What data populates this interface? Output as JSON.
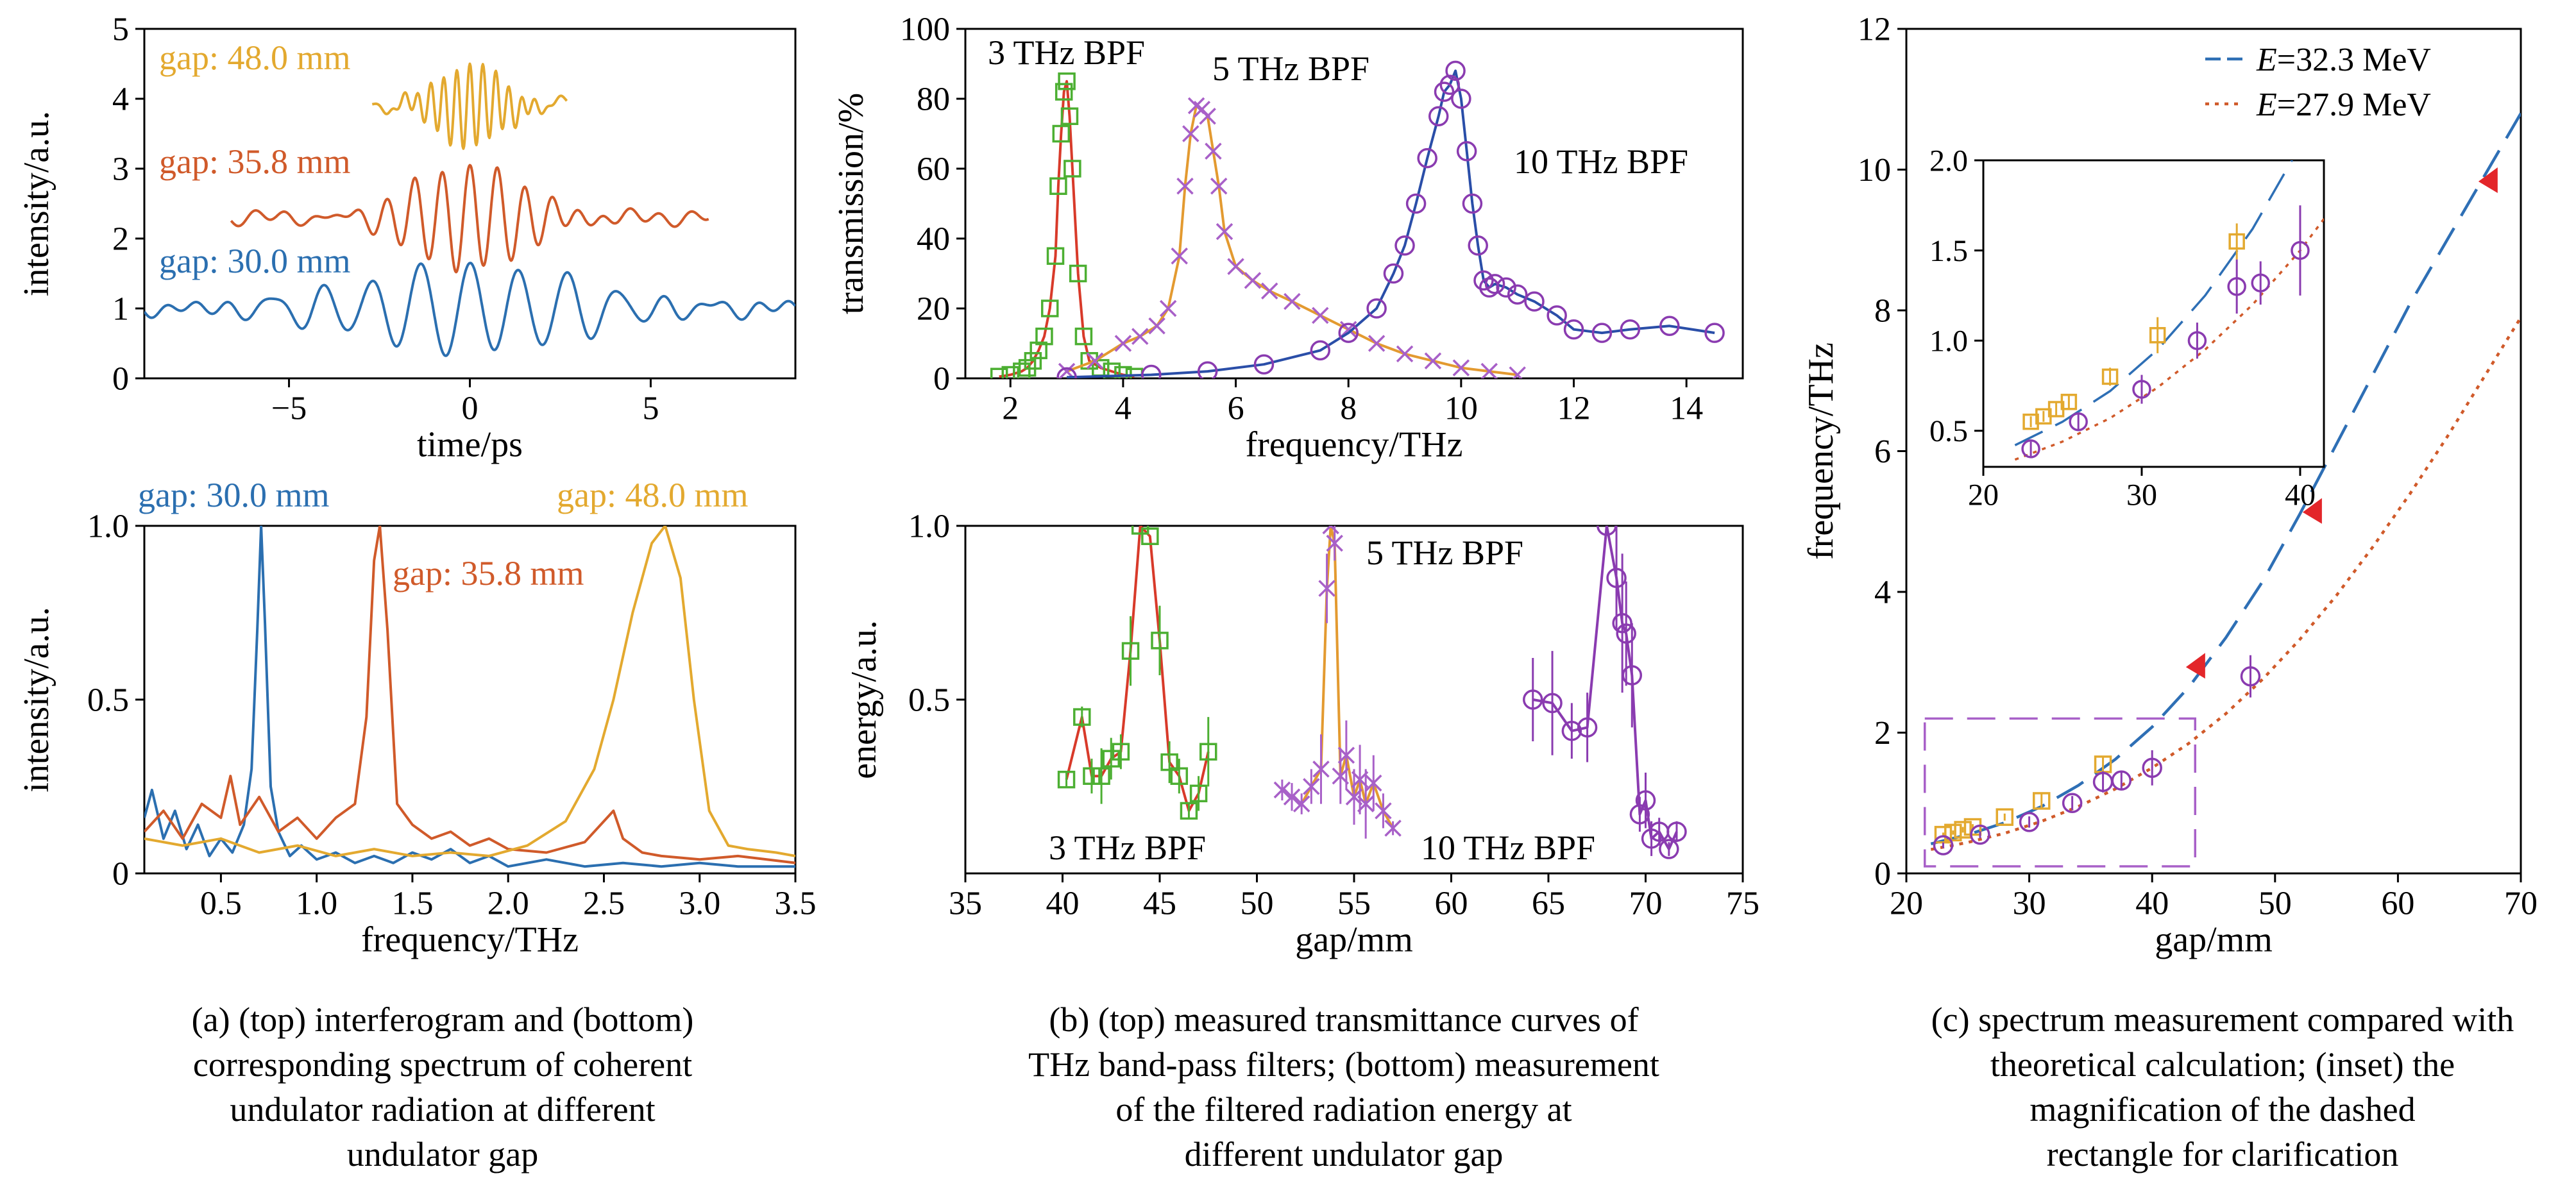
{
  "chart_data": [
    {
      "id": "a_top",
      "type": "line",
      "xlabel": "time/ps",
      "ylabel": "intensity/a.u.",
      "xlim": [
        -9,
        9
      ],
      "ylim": [
        0,
        5
      ],
      "xticks": [
        -5,
        0,
        5
      ],
      "yticks": [
        0,
        1,
        2,
        3,
        4,
        5
      ],
      "xtick_labels": [
        "−5",
        "0",
        "5"
      ],
      "ytick_labels": [
        "0",
        "1",
        "2",
        "3",
        "4",
        "5"
      ],
      "grid": false,
      "series": [
        {
          "name": "gap: 30.0 mm",
          "color": "#2b6fb0",
          "x_range": [
            -9,
            9
          ],
          "baseline": 1.0,
          "carrier_period_ps": 1.35,
          "envelope_peak": 0.65,
          "envelope_width_ps": 4.5
        },
        {
          "name": "gap: 35.8 mm",
          "color": "#d05a2a",
          "x_range": [
            -6.6,
            6.6
          ],
          "baseline": 2.3,
          "carrier_period_ps": 0.76,
          "envelope_peak": 0.75,
          "envelope_width_ps": 2.4
        },
        {
          "name": "gap: 48.0 mm",
          "color": "#e3a92f",
          "x_range": [
            -2.7,
            2.7
          ],
          "baseline": 3.9,
          "carrier_period_ps": 0.36,
          "envelope_peak": 0.6,
          "envelope_width_ps": 1.3
        }
      ]
    },
    {
      "id": "a_bottom",
      "type": "line",
      "xlabel": "frequency/THz",
      "ylabel": "intensity/a.u.",
      "xlim": [
        0.1,
        3.5
      ],
      "ylim": [
        0,
        1.0
      ],
      "xticks": [
        0.5,
        1.0,
        1.5,
        2.0,
        2.5,
        3.0,
        3.5
      ],
      "yticks": [
        0,
        0.5,
        1.0
      ],
      "xtick_labels": [
        "0.5",
        "1.0",
        "1.5",
        "2.0",
        "2.5",
        "3.0",
        "3.5"
      ],
      "ytick_labels": [
        "0",
        "0.5",
        "1.0"
      ],
      "grid": false,
      "series": [
        {
          "name": "gap: 30.0 mm",
          "color": "#2b6fb0",
          "x": [
            0.1,
            0.14,
            0.2,
            0.26,
            0.32,
            0.38,
            0.44,
            0.5,
            0.56,
            0.62,
            0.66,
            0.69,
            0.71,
            0.73,
            0.76,
            0.8,
            0.86,
            0.92,
            1.0,
            1.1,
            1.2,
            1.3,
            1.4,
            1.5,
            1.6,
            1.7,
            1.8,
            1.9,
            2.0,
            2.2,
            2.4,
            2.6,
            2.8,
            3.0,
            3.2,
            3.5
          ],
          "y": [
            0.16,
            0.24,
            0.1,
            0.18,
            0.07,
            0.14,
            0.05,
            0.1,
            0.06,
            0.14,
            0.3,
            0.7,
            1.0,
            0.72,
            0.25,
            0.12,
            0.05,
            0.08,
            0.04,
            0.06,
            0.03,
            0.05,
            0.03,
            0.06,
            0.04,
            0.07,
            0.03,
            0.05,
            0.02,
            0.04,
            0.02,
            0.03,
            0.02,
            0.03,
            0.02,
            0.02
          ]
        },
        {
          "name": "gap: 35.8 mm",
          "color": "#d05a2a",
          "x": [
            0.1,
            0.2,
            0.3,
            0.4,
            0.5,
            0.55,
            0.6,
            0.7,
            0.8,
            0.9,
            1.0,
            1.1,
            1.2,
            1.26,
            1.3,
            1.33,
            1.37,
            1.42,
            1.5,
            1.6,
            1.7,
            1.8,
            1.9,
            2.0,
            2.2,
            2.4,
            2.55,
            2.6,
            2.7,
            2.8,
            3.0,
            3.2,
            3.5
          ],
          "y": [
            0.12,
            0.18,
            0.1,
            0.2,
            0.16,
            0.28,
            0.14,
            0.22,
            0.12,
            0.16,
            0.1,
            0.16,
            0.2,
            0.45,
            0.9,
            1.0,
            0.7,
            0.2,
            0.14,
            0.1,
            0.12,
            0.08,
            0.1,
            0.07,
            0.06,
            0.09,
            0.18,
            0.1,
            0.06,
            0.05,
            0.04,
            0.05,
            0.03
          ]
        },
        {
          "name": "gap: 48.0 mm",
          "color": "#e3a92f",
          "x": [
            0.1,
            0.3,
            0.5,
            0.7,
            0.9,
            1.1,
            1.3,
            1.5,
            1.7,
            1.9,
            2.1,
            2.3,
            2.45,
            2.55,
            2.65,
            2.75,
            2.82,
            2.9,
            2.97,
            3.05,
            3.15,
            3.25,
            3.4,
            3.5
          ],
          "y": [
            0.1,
            0.08,
            0.1,
            0.06,
            0.08,
            0.05,
            0.07,
            0.05,
            0.06,
            0.05,
            0.08,
            0.15,
            0.3,
            0.5,
            0.75,
            0.95,
            1.0,
            0.85,
            0.5,
            0.18,
            0.08,
            0.07,
            0.06,
            0.05
          ]
        }
      ]
    },
    {
      "id": "b_top",
      "type": "line",
      "xlabel": "frequency/THz",
      "ylabel": "transmission/%",
      "xlim": [
        1.2,
        15
      ],
      "ylim": [
        0,
        100
      ],
      "xticks": [
        2,
        4,
        6,
        8,
        10,
        12,
        14
      ],
      "yticks": [
        0,
        20,
        40,
        60,
        80,
        100
      ],
      "xtick_labels": [
        "2",
        "4",
        "6",
        "8",
        "10",
        "12",
        "14"
      ],
      "ytick_labels": [
        "0",
        "20",
        "40",
        "60",
        "80",
        "100"
      ],
      "grid": false,
      "series": [
        {
          "name": "3 THz BPF",
          "color": "#4caf32",
          "line_color": "#d83a2a",
          "marker": "square",
          "x": [
            1.8,
            2.0,
            2.2,
            2.3,
            2.4,
            2.5,
            2.6,
            2.7,
            2.8,
            2.85,
            2.9,
            2.95,
            3.0,
            3.05,
            3.1,
            3.2,
            3.3,
            3.4,
            3.6,
            3.8,
            4.0,
            4.2
          ],
          "y": [
            0.5,
            1,
            2,
            3,
            5,
            8,
            12,
            20,
            35,
            55,
            70,
            82,
            85,
            75,
            60,
            30,
            12,
            5,
            3,
            2,
            1,
            0.5
          ]
        },
        {
          "name": "5 THz BPF",
          "color": "#a860c8",
          "line_color": "#e39a30",
          "marker": "x",
          "x": [
            3.0,
            3.5,
            4.0,
            4.3,
            4.6,
            4.8,
            5.0,
            5.1,
            5.2,
            5.3,
            5.4,
            5.5,
            5.6,
            5.7,
            5.8,
            6.0,
            6.3,
            6.6,
            7.0,
            7.5,
            8.0,
            8.5,
            9.0,
            9.5,
            10.0,
            10.5,
            11.0
          ],
          "y": [
            2,
            5,
            10,
            12,
            15,
            20,
            35,
            55,
            70,
            78,
            77,
            75,
            65,
            55,
            42,
            32,
            28,
            25,
            22,
            18,
            14,
            10,
            7,
            5,
            3,
            2,
            1
          ]
        },
        {
          "name": "10 THz BPF",
          "color": "#8a3bb0",
          "line_color": "#2a4ea8",
          "marker": "circle",
          "x": [
            3.0,
            4.5,
            5.5,
            6.5,
            7.5,
            8.0,
            8.5,
            8.8,
            9.0,
            9.2,
            9.4,
            9.6,
            9.7,
            9.8,
            9.9,
            10.0,
            10.1,
            10.2,
            10.3,
            10.4,
            10.5,
            10.6,
            10.8,
            11.0,
            11.3,
            11.7,
            12.0,
            12.5,
            13.0,
            13.7,
            14.5
          ],
          "y": [
            0.3,
            1,
            2,
            4,
            8,
            13,
            20,
            30,
            38,
            50,
            63,
            75,
            82,
            84,
            88,
            80,
            65,
            50,
            38,
            28,
            26,
            27,
            26,
            24,
            22,
            18,
            14,
            13,
            14,
            15,
            13
          ]
        }
      ]
    },
    {
      "id": "b_bottom",
      "type": "scatter",
      "xlabel": "gap/mm",
      "ylabel": "energy/a.u.",
      "xlim": [
        35,
        75
      ],
      "ylim": [
        0,
        1.0
      ],
      "xticks": [
        35,
        40,
        45,
        50,
        55,
        60,
        65,
        70,
        75
      ],
      "yticks": [
        0.5,
        1.0
      ],
      "xtick_labels": [
        "35",
        "40",
        "45",
        "50",
        "55",
        "60",
        "65",
        "70",
        "75"
      ],
      "ytick_labels": [
        "0.5",
        "1.0"
      ],
      "grid": false,
      "series": [
        {
          "name": "3 THz BPF",
          "color": "#4caf32",
          "line_color": "#d83a2a",
          "marker": "square",
          "x": [
            40.2,
            41.0,
            41.5,
            42.0,
            42.5,
            43.0,
            43.5,
            44.0,
            44.5,
            45.0,
            45.5,
            46.0,
            46.5,
            47.0,
            47.5
          ],
          "y": [
            0.27,
            0.45,
            0.28,
            0.28,
            0.33,
            0.35,
            0.64,
            1.0,
            0.97,
            0.67,
            0.32,
            0.28,
            0.18,
            0.23,
            0.35
          ],
          "err": [
            0.02,
            0.03,
            0.05,
            0.08,
            0.06,
            0.05,
            0.1,
            0.0,
            0.0,
            0.1,
            0.06,
            0.05,
            0.02,
            0.05,
            0.1
          ]
        },
        {
          "name": "5 THz BPF",
          "color": "#a860c8",
          "line_color": "#e39a30",
          "marker": "x",
          "x": [
            51.3,
            51.8,
            52.3,
            52.8,
            53.3,
            53.6,
            53.8,
            54.0,
            54.3,
            54.6,
            55.0,
            55.3,
            55.6,
            56.0,
            56.5,
            57.0
          ],
          "y": [
            0.24,
            0.22,
            0.2,
            0.25,
            0.3,
            0.82,
            1.0,
            0.95,
            0.28,
            0.34,
            0.22,
            0.27,
            0.2,
            0.26,
            0.18,
            0.13
          ],
          "err": [
            0.03,
            0.04,
            0.03,
            0.05,
            0.1,
            0.1,
            0.0,
            0.05,
            0.08,
            0.1,
            0.08,
            0.1,
            0.1,
            0.08,
            0.05,
            0.02
          ]
        },
        {
          "name": "10 THz BPF",
          "color": "#8a3bb0",
          "line_color": "#8a3bb0",
          "marker": "circle",
          "x": [
            64.2,
            65.2,
            66.2,
            67.0,
            68.0,
            68.5,
            68.8,
            69.0,
            69.3,
            69.7,
            70.0,
            70.3,
            70.7,
            71.2,
            71.6
          ],
          "y": [
            0.5,
            0.49,
            0.41,
            0.42,
            1.0,
            0.85,
            0.72,
            0.69,
            0.57,
            0.17,
            0.21,
            0.1,
            0.12,
            0.07,
            0.12
          ],
          "err": [
            0.12,
            0.15,
            0.08,
            0.1,
            0.0,
            0.15,
            0.2,
            0.15,
            0.15,
            0.05,
            0.08,
            0.05,
            0.04,
            0.02,
            0.03
          ]
        }
      ]
    },
    {
      "id": "c_main",
      "type": "line",
      "xlabel": "gap/mm",
      "ylabel": "frequency/THz",
      "xlim": [
        20,
        70
      ],
      "ylim": [
        0,
        12
      ],
      "xticks": [
        20,
        30,
        40,
        50,
        60,
        70
      ],
      "yticks": [
        0,
        2,
        4,
        6,
        8,
        10,
        12
      ],
      "xtick_labels": [
        "20",
        "30",
        "40",
        "50",
        "60",
        "70"
      ],
      "ytick_labels": [
        "0",
        "2",
        "4",
        "6",
        "8",
        "10",
        "12"
      ],
      "grid": false,
      "legend_position": "top-right",
      "series": [
        {
          "name": "=32.3 MeV",
          "name_prefix": "E",
          "color": "#2e6fb5",
          "dash": "long-dash",
          "x": [
            22,
            25,
            28,
            31,
            34,
            37,
            40,
            43,
            46,
            49,
            52,
            55,
            58,
            61,
            64,
            67,
            70
          ],
          "y": [
            0.42,
            0.55,
            0.72,
            0.95,
            1.25,
            1.62,
            2.08,
            2.65,
            3.35,
            4.15,
            5.1,
            6.1,
            7.1,
            8.1,
            9.0,
            9.9,
            10.8
          ]
        },
        {
          "name": "=27.9 MeV",
          "name_prefix": "E",
          "color": "#d05a2a",
          "dash": "dotted",
          "x": [
            22,
            25,
            28,
            31,
            34,
            37,
            40,
            43,
            46,
            49,
            52,
            55,
            58,
            61,
            64,
            67,
            70
          ],
          "y": [
            0.34,
            0.44,
            0.57,
            0.74,
            0.95,
            1.2,
            1.5,
            1.85,
            2.27,
            2.76,
            3.32,
            3.95,
            4.65,
            5.4,
            6.2,
            7.05,
            7.9
          ]
        },
        {
          "name": "",
          "color": "#e3a92f",
          "marker": "square",
          "x": [
            23.0,
            23.8,
            24.6,
            25.4,
            28.0,
            31.0,
            36.0
          ],
          "y": [
            0.55,
            0.58,
            0.62,
            0.66,
            0.8,
            1.03,
            1.55
          ],
          "err": [
            0.03,
            0.03,
            0.04,
            0.04,
            0.05,
            0.1,
            0.1
          ]
        },
        {
          "name": "",
          "color": "#8a3bb0",
          "marker": "circle",
          "x": [
            23.0,
            26.0,
            30.0,
            33.5,
            36.0,
            37.5,
            40.0,
            48.0
          ],
          "y": [
            0.4,
            0.55,
            0.73,
            1.0,
            1.3,
            1.32,
            1.5,
            2.8
          ],
          "err": [
            0.04,
            0.05,
            0.08,
            0.1,
            0.15,
            0.12,
            0.25,
            0.3
          ]
        }
      ],
      "arrows": [
        {
          "x": 44,
          "y": 2.95,
          "color": "#e3262a"
        },
        {
          "x": 53.5,
          "y": 5.15,
          "color": "#e3262a"
        },
        {
          "x": 67.8,
          "y": 9.85,
          "color": "#e3262a"
        }
      ],
      "dashed_rect": {
        "x": [
          21.5,
          43.5
        ],
        "y": [
          0.1,
          2.2
        ],
        "color": "#a860c8"
      }
    },
    {
      "id": "c_inset",
      "type": "line",
      "xlim": [
        20,
        41.5
      ],
      "ylim": [
        0.3,
        2.0
      ],
      "xticks": [
        20,
        30,
        40
      ],
      "yticks": [
        0.5,
        1.0,
        1.5,
        2.0
      ],
      "xtick_labels": [
        "20",
        "30",
        "40"
      ],
      "ytick_labels": [
        "0.5",
        "1.0",
        "1.5",
        "2.0"
      ],
      "grid": false,
      "series_ref": "c_main"
    }
  ],
  "annotations": {
    "a_top": [
      "gap: 48.0 mm",
      "gap: 35.8 mm",
      "gap: 30.0 mm"
    ],
    "a_bottom": [
      "gap: 30.0 mm",
      "gap: 35.8 mm",
      "gap: 48.0 mm"
    ],
    "b_top": [
      "3 THz BPF",
      "5 THz BPF",
      "10 THz BPF"
    ],
    "b_bottom": [
      "5 THz BPF",
      "3 THz BPF",
      "10 THz BPF"
    ]
  },
  "captions": {
    "a": [
      "(a) (top) interferogram and (bottom)",
      "corresponding spectrum of coherent",
      "undulator radiation at different",
      "undulator gap"
    ],
    "b": [
      "(b) (top) measured transmittance curves of",
      "THz band-pass filters; (bottom) measurement",
      "of the filtered radiation energy at",
      "different undulator gap"
    ],
    "c": [
      "(c) spectrum measurement compared with",
      "theoretical calculation; (inset) the",
      "magnification of the dashed",
      "rectangle for clarification"
    ]
  }
}
